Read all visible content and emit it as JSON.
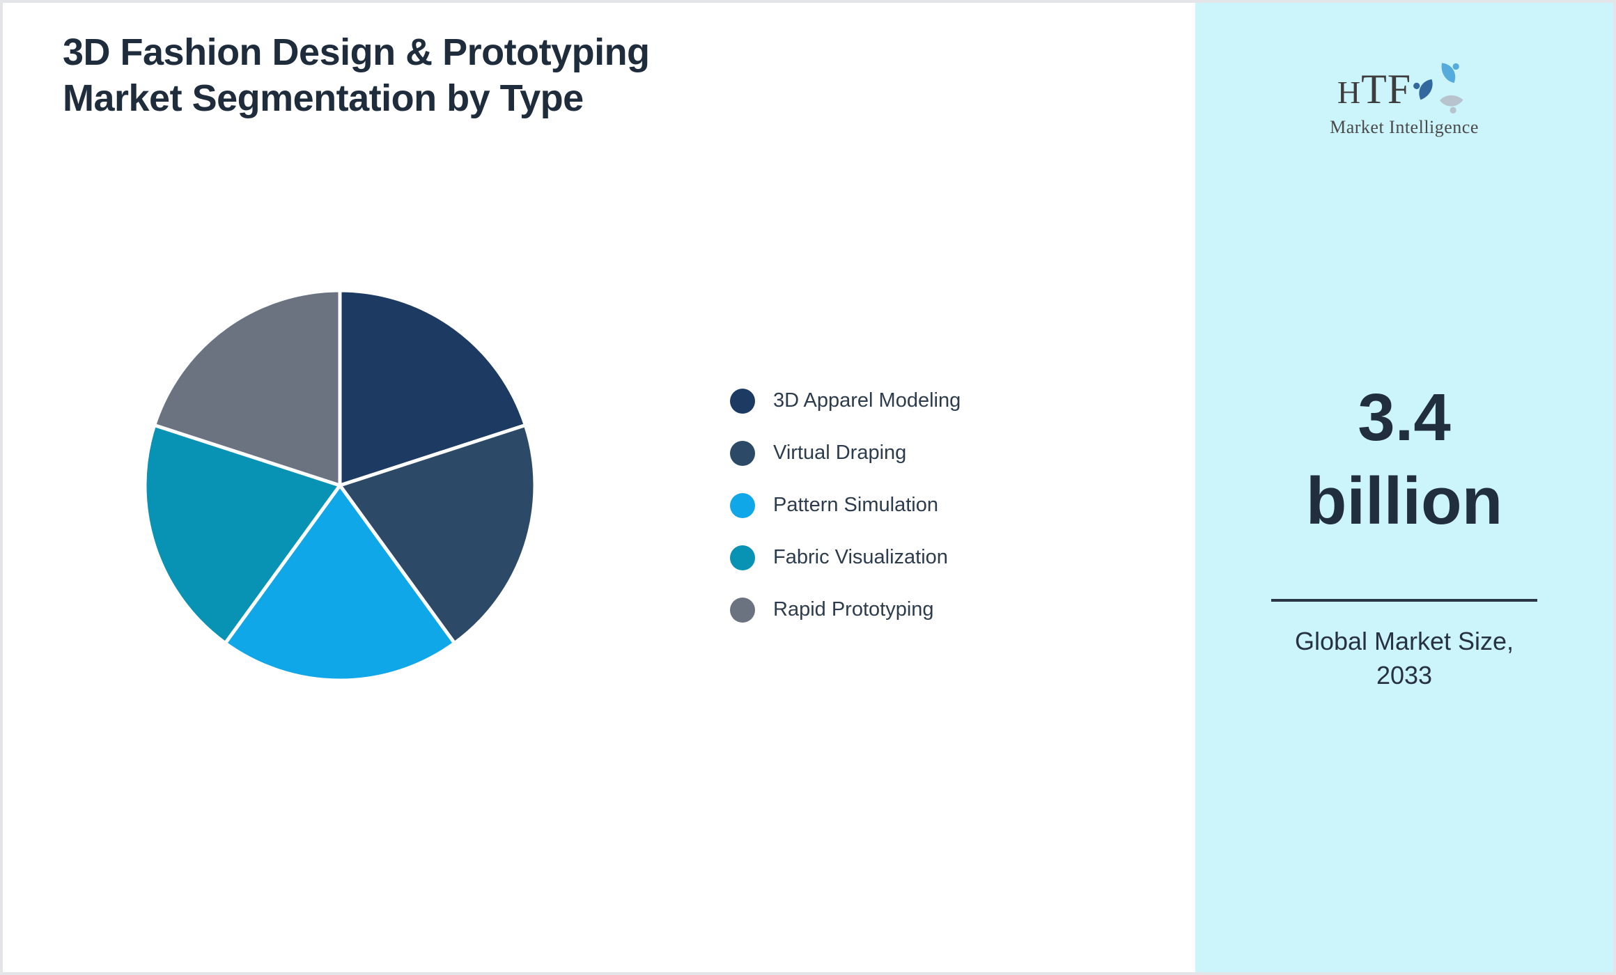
{
  "title": {
    "line1": "3D Fashion Design & Prototyping",
    "line2": "Market Segmentation by Type"
  },
  "chart_data": {
    "type": "pie",
    "title": "3D Fashion Design & Prototyping Market Segmentation by Type",
    "categories": [
      "3D Apparel Modeling",
      "Virtual Draping",
      "Pattern Simulation",
      "Fabric Visualization",
      "Rapid Prototyping"
    ],
    "values": [
      20,
      20,
      20,
      20,
      20
    ],
    "colors": [
      "#1d3a63",
      "#2c4a68",
      "#10a7e9",
      "#0892b4",
      "#6b7380"
    ],
    "legend_position": "right",
    "start_angle_deg": 0,
    "direction": "clockwise",
    "slice_border_color": "#ffffff",
    "data_labels": "none"
  },
  "sidebar": {
    "background_color": "#ccf4fb",
    "logo": {
      "brand_h": "H",
      "brand_tf": "TF",
      "subtitle": "Market Intelligence",
      "swirl_colors": [
        "#55abdc",
        "#b7c3cd",
        "#33689e"
      ]
    },
    "market_size": {
      "value_top": "3.4",
      "value_bottom": "billion",
      "caption_line1": "Global Market Size,",
      "caption_line2": "2033"
    }
  }
}
